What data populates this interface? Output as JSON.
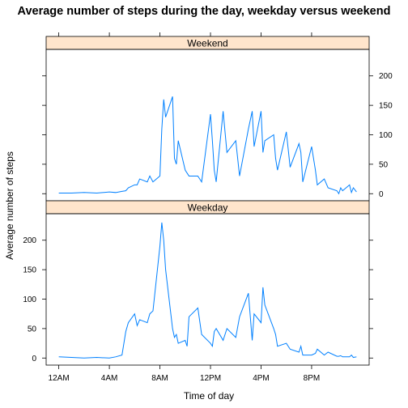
{
  "chart_data": {
    "type": "line",
    "title": "Average number of steps during the day, weekday versus weekend",
    "xlabel": "Time of day",
    "ylabel": "Average number of steps",
    "xlim": [
      -100,
      2455
    ],
    "ylim": [
      -12,
      245
    ],
    "x_ticks": [
      {
        "value": 0,
        "label": "12AM"
      },
      {
        "value": 400,
        "label": "4AM"
      },
      {
        "value": 800,
        "label": "8AM"
      },
      {
        "value": 1200,
        "label": "12PM"
      },
      {
        "value": 1600,
        "label": "4PM"
      },
      {
        "value": 2000,
        "label": "8PM"
      }
    ],
    "y_ticks": [
      0,
      50,
      100,
      150,
      200
    ],
    "line_color": "#0080ff",
    "strip_color": "#ffe5cc",
    "panels": [
      {
        "name": "Weekend",
        "x": [
          0,
          100,
          200,
          300,
          400,
          450,
          500,
          530,
          550,
          600,
          620,
          640,
          700,
          720,
          745,
          800,
          815,
          830,
          845,
          900,
          915,
          930,
          945,
          1000,
          1015,
          1030,
          1100,
          1130,
          1200,
          1215,
          1230,
          1245,
          1300,
          1330,
          1400,
          1430,
          1500,
          1530,
          1545,
          1600,
          1615,
          1630,
          1700,
          1715,
          1730,
          1800,
          1830,
          1900,
          1915,
          1930,
          2000,
          2030,
          2045,
          2100,
          2130,
          2200,
          2215,
          2230,
          2245,
          2300,
          2315,
          2330,
          2355
        ],
        "values": [
          1,
          1,
          2,
          1,
          3,
          2,
          4,
          5,
          10,
          15,
          15,
          25,
          20,
          30,
          20,
          30,
          110,
          160,
          130,
          165,
          60,
          50,
          90,
          40,
          35,
          30,
          30,
          20,
          135,
          90,
          40,
          20,
          140,
          70,
          90,
          30,
          110,
          140,
          80,
          140,
          70,
          90,
          100,
          60,
          40,
          105,
          45,
          85,
          70,
          20,
          80,
          40,
          15,
          25,
          10,
          5,
          0,
          10,
          5,
          15,
          2,
          10,
          3
        ]
      },
      {
        "name": "Weekday",
        "x": [
          0,
          100,
          200,
          300,
          400,
          450,
          500,
          530,
          550,
          600,
          620,
          640,
          700,
          720,
          745,
          800,
          815,
          830,
          845,
          900,
          915,
          930,
          945,
          1000,
          1015,
          1030,
          1100,
          1130,
          1200,
          1215,
          1230,
          1245,
          1300,
          1330,
          1400,
          1430,
          1500,
          1530,
          1545,
          1600,
          1615,
          1630,
          1700,
          1715,
          1730,
          1800,
          1830,
          1900,
          1915,
          1930,
          2000,
          2030,
          2045,
          2100,
          2130,
          2200,
          2215,
          2230,
          2245,
          2300,
          2315,
          2330,
          2355
        ],
        "values": [
          2,
          1,
          0,
          1,
          0,
          2,
          5,
          45,
          60,
          75,
          55,
          65,
          60,
          75,
          80,
          190,
          230,
          200,
          150,
          50,
          35,
          40,
          25,
          30,
          20,
          70,
          85,
          40,
          25,
          20,
          45,
          50,
          30,
          50,
          35,
          70,
          110,
          30,
          75,
          60,
          120,
          90,
          50,
          40,
          20,
          25,
          15,
          10,
          20,
          5,
          5,
          8,
          15,
          5,
          10,
          3,
          3,
          4,
          2,
          2,
          5,
          1,
          2
        ]
      }
    ]
  }
}
